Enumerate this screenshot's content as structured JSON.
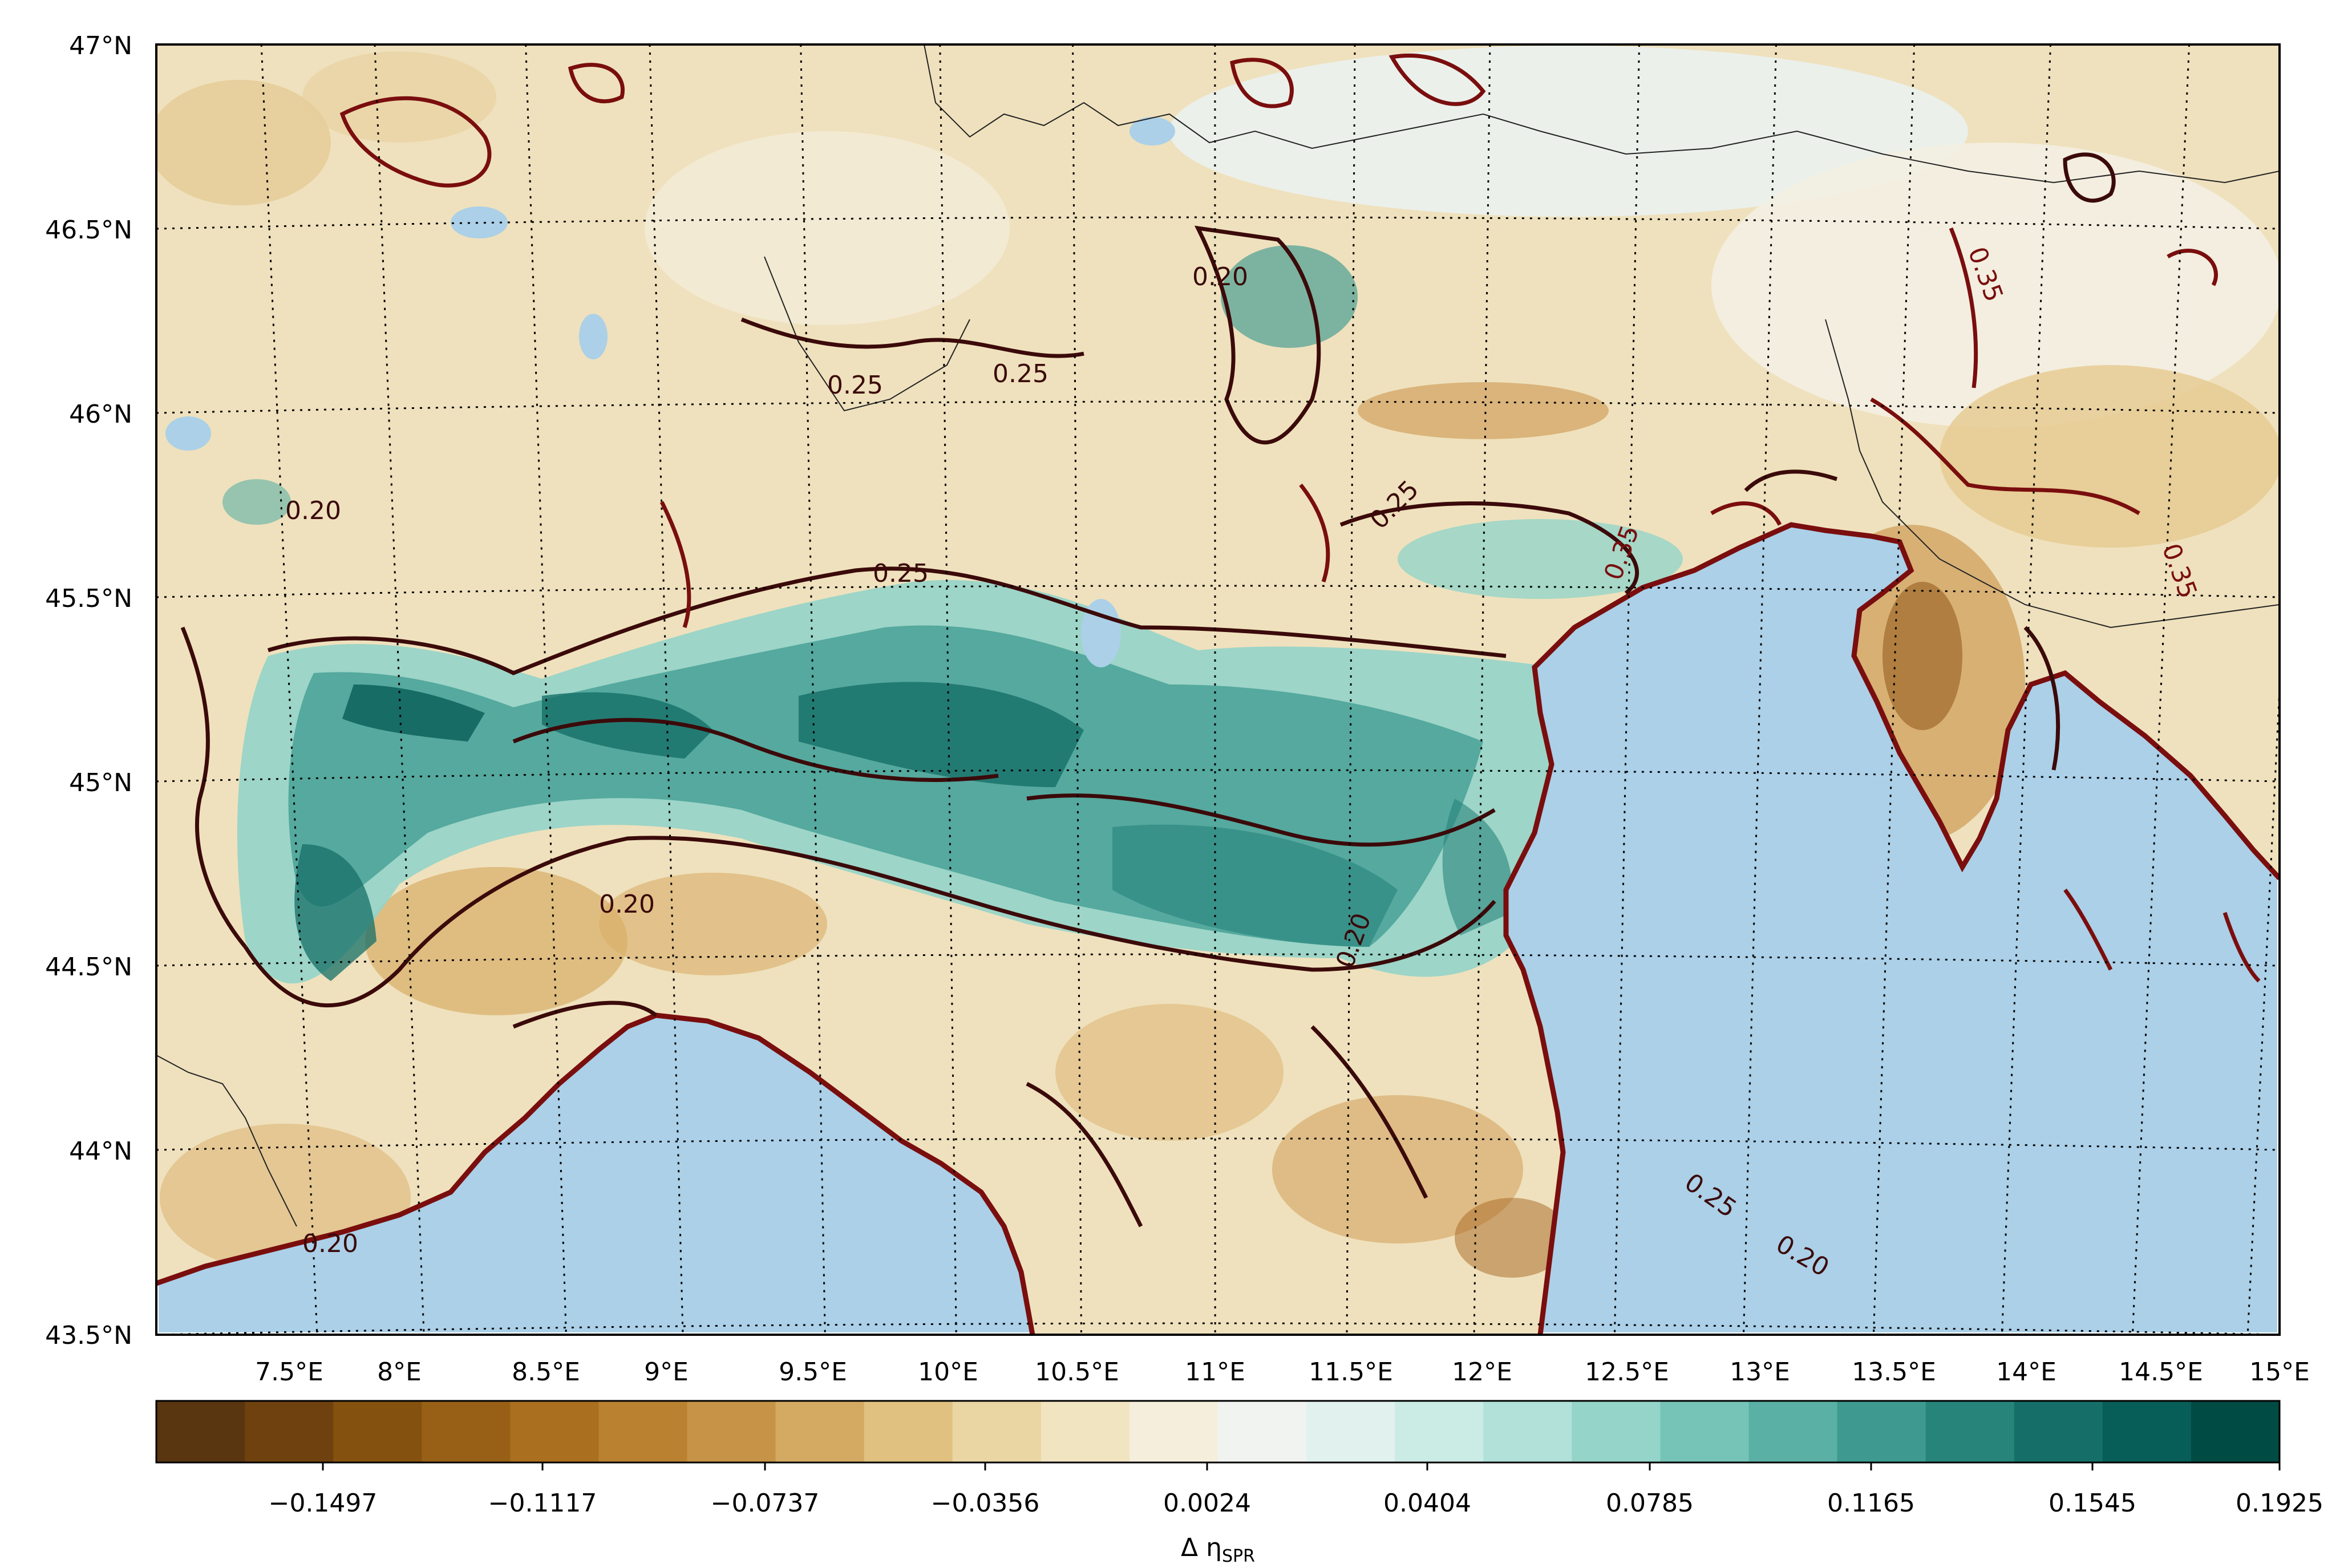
{
  "map": {
    "lat_labels": [
      "47°N",
      "46.5°N",
      "46°N",
      "45.5°N",
      "45°N",
      "44.5°N",
      "44°N",
      "43.5°N"
    ],
    "lon_labels": [
      "7.5°E",
      "8°E",
      "8.5°E",
      "9°E",
      "9.5°E",
      "10°E",
      "10.5°E",
      "11°E",
      "11.5°E",
      "12°E",
      "12.5°E",
      "13°E",
      "13.5°E",
      "14°E",
      "14.5°E",
      "15°E"
    ],
    "contour_labels": [
      "0.20",
      "0.25",
      "0.35"
    ],
    "colors": {
      "sea": "#abd0e8",
      "contour_dark": "#3b0a0a",
      "contour_red": "#7a0e0e",
      "coastline": "#ffffff"
    }
  },
  "colorbar": {
    "tick_labels": [
      "−0.1497",
      "−0.1117",
      "−0.0737",
      "−0.0356",
      "0.0024",
      "0.0404",
      "0.0785",
      "0.1165",
      "0.1545",
      "0.1925"
    ],
    "label": "Δ η",
    "label_subscript": "SPR",
    "colormap": "BrBG",
    "colors": [
      "#593510",
      "#6e410f",
      "#84510f",
      "#985f16",
      "#aa6f1f",
      "#ba8131",
      "#c79447",
      "#d4aa63",
      "#e0c180",
      "#ead6a2",
      "#f1e4c0",
      "#f5eedc",
      "#f1f3f1",
      "#e1f1ee",
      "#cbebe5",
      "#b1e1d8",
      "#94d4c9",
      "#76c4b7",
      "#5ab0a4",
      "#3e9a90",
      "#27847b",
      "#156f68",
      "#075d57",
      "#004b44"
    ]
  }
}
